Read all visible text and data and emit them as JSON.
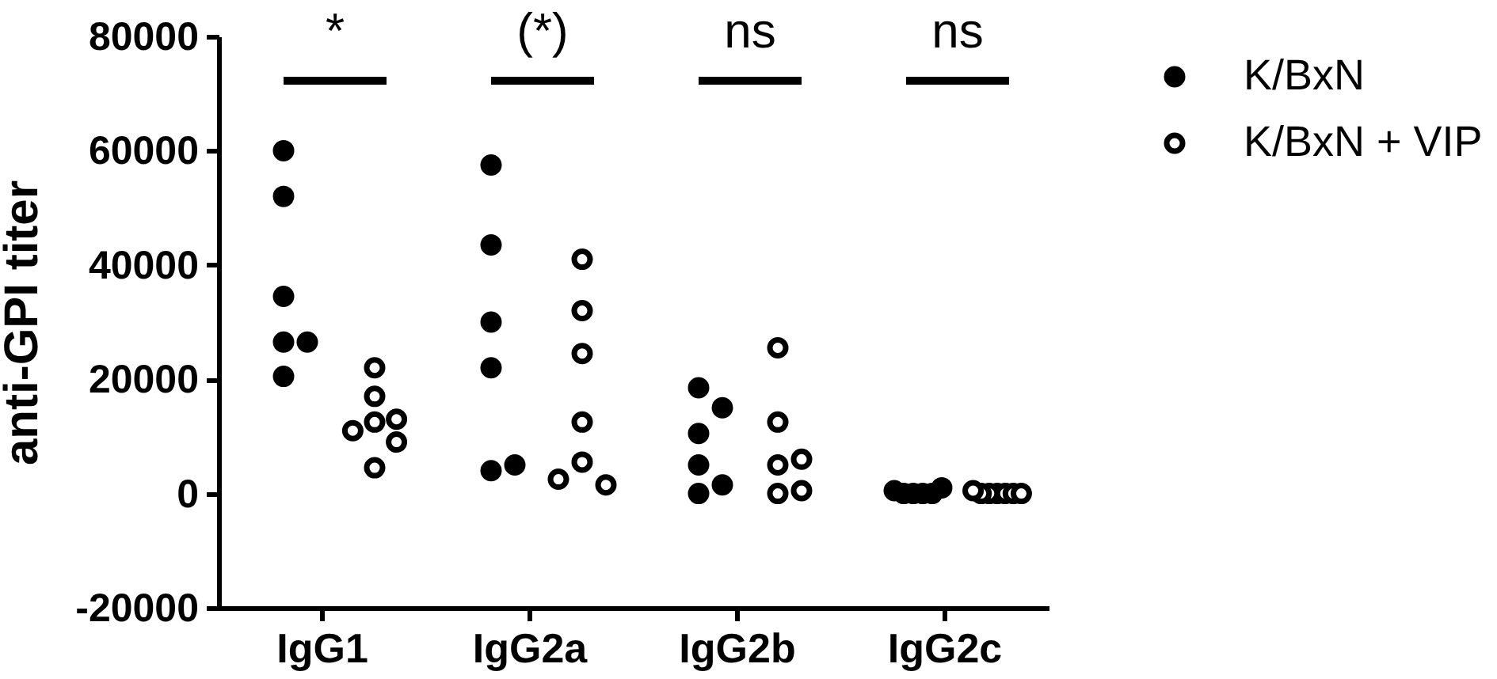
{
  "chart_data": {
    "type": "scatter",
    "categories": [
      "IgG1",
      "IgG2a",
      "IgG2b",
      "IgG2c"
    ],
    "ylabel": "anti-GPI titer",
    "ylim": [
      -20000,
      80000
    ],
    "yticks": [
      -20000,
      0,
      20000,
      40000,
      60000,
      80000
    ],
    "legend": "top right",
    "series": [
      {
        "name": "K/BxN",
        "color": "#000000",
        "marker": "circle",
        "x": [
          "IgG1",
          "IgG1",
          "IgG1",
          "IgG1",
          "IgG1",
          "IgG1",
          "IgG2a",
          "IgG2a",
          "IgG2a",
          "IgG2a",
          "IgG2a",
          "IgG2a",
          "IgG2b",
          "IgG2b",
          "IgG2b",
          "IgG2b",
          "IgG2b",
          "IgG2b",
          "IgG2c",
          "IgG2c",
          "IgG2c",
          "IgG2c",
          "IgG2c",
          "IgG2c"
        ],
        "values": [
          60000,
          52000,
          34500,
          26500,
          26500,
          20500,
          57500,
          43500,
          30000,
          22000,
          4000,
          5000,
          18500,
          15000,
          10500,
          5000,
          0,
          1500,
          0,
          0,
          0,
          0,
          500,
          1000
        ]
      },
      {
        "name": "K/BxN + VIP",
        "color": "#000000",
        "marker": "circle-open",
        "x": [
          "IgG1",
          "IgG1",
          "IgG1",
          "IgG1",
          "IgG1",
          "IgG1",
          "IgG1",
          "IgG2a",
          "IgG2a",
          "IgG2a",
          "IgG2a",
          "IgG2a",
          "IgG2a",
          "IgG2a",
          "IgG2b",
          "IgG2b",
          "IgG2b",
          "IgG2b",
          "IgG2b",
          "IgG2b",
          "IgG2c",
          "IgG2c",
          "IgG2c",
          "IgG2c",
          "IgG2c",
          "IgG2c",
          "IgG2c"
        ],
        "values": [
          22000,
          17000,
          12500,
          13000,
          11000,
          9000,
          4500,
          41000,
          32000,
          24500,
          12500,
          5500,
          1500,
          2500,
          25500,
          12500,
          5000,
          6000,
          0,
          500,
          0,
          0,
          0,
          0,
          0,
          0,
          500
        ]
      }
    ],
    "annotations": [
      "*",
      "(*)",
      "ns",
      "ns"
    ]
  }
}
